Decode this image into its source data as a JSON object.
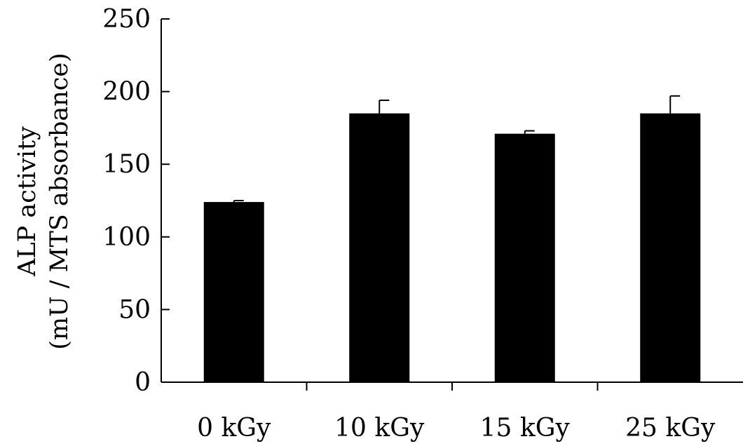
{
  "chart_data": {
    "type": "bar",
    "categories": [
      "0 kGy",
      "10 kGy",
      "15 kGy",
      "25 kGy"
    ],
    "values": [
      124,
      185,
      171,
      185
    ],
    "errors": [
      1,
      9,
      2,
      12
    ],
    "title": "",
    "xlabel": "",
    "ylabel": [
      "ALP activity",
      "(mU / MTS absorbance)"
    ],
    "ylim": [
      0,
      250
    ],
    "yticks": [
      0,
      50,
      100,
      150,
      200,
      250
    ],
    "grid": false,
    "legend": "none",
    "colors": {
      "bar": "#000000",
      "axis": "#000000"
    }
  }
}
